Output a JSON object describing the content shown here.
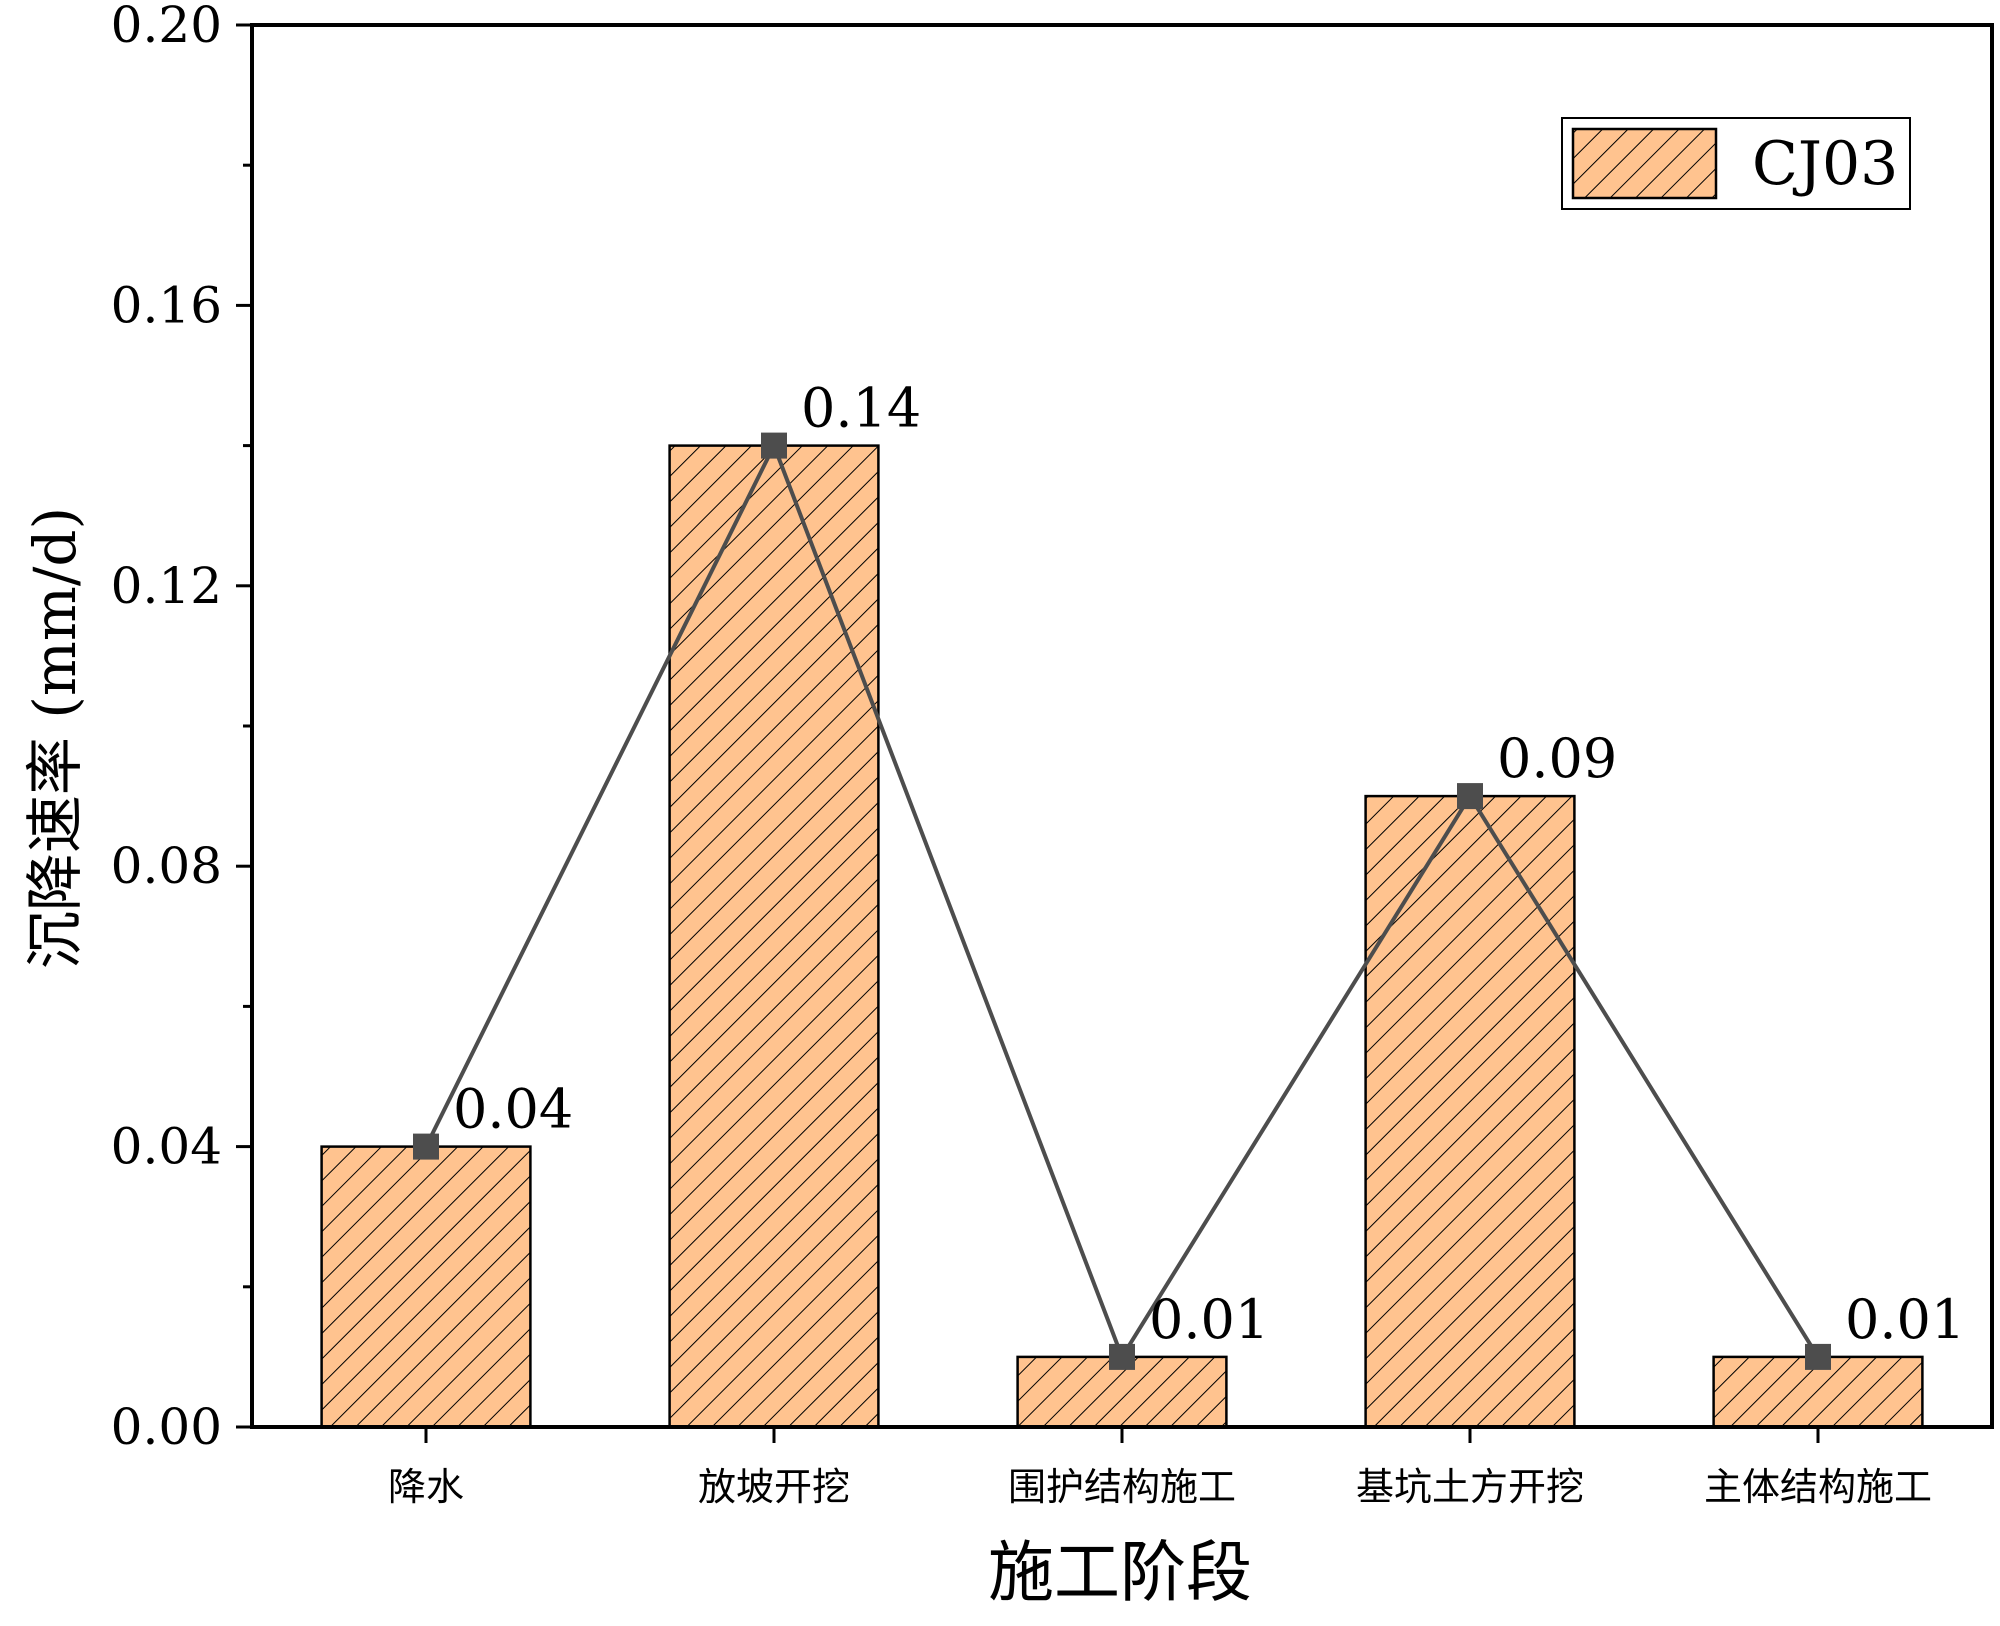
{
  "chart_data": {
    "type": "bar",
    "categories": [
      "降水",
      "放坡开挖",
      "围护结构施工",
      "基坑土方开挖",
      "主体结构施工"
    ],
    "series": [
      {
        "name": "CJ03",
        "values": [
          0.04,
          0.14,
          0.01,
          0.09,
          0.01
        ]
      }
    ],
    "overlay_line": true,
    "data_labels": [
      "0.04",
      "0.14",
      "0.01",
      "0.09",
      "0.01"
    ],
    "xlabel": "施工阶段",
    "ylabel": "沉降速率 (mm/d)",
    "ylim": [
      0,
      0.2
    ],
    "yticks": [
      0.0,
      0.04,
      0.08,
      0.12,
      0.16,
      0.2
    ],
    "ytick_labels": [
      "0.00",
      "0.04",
      "0.08",
      "0.12",
      "0.16",
      "0.20"
    ],
    "legend_placement": "top-right",
    "grid": false,
    "colors": {
      "bar_fill": "#FFC38F",
      "bar_hatch": "#000000",
      "line": "#4D4D4D",
      "marker": "#4D4D4D"
    }
  }
}
